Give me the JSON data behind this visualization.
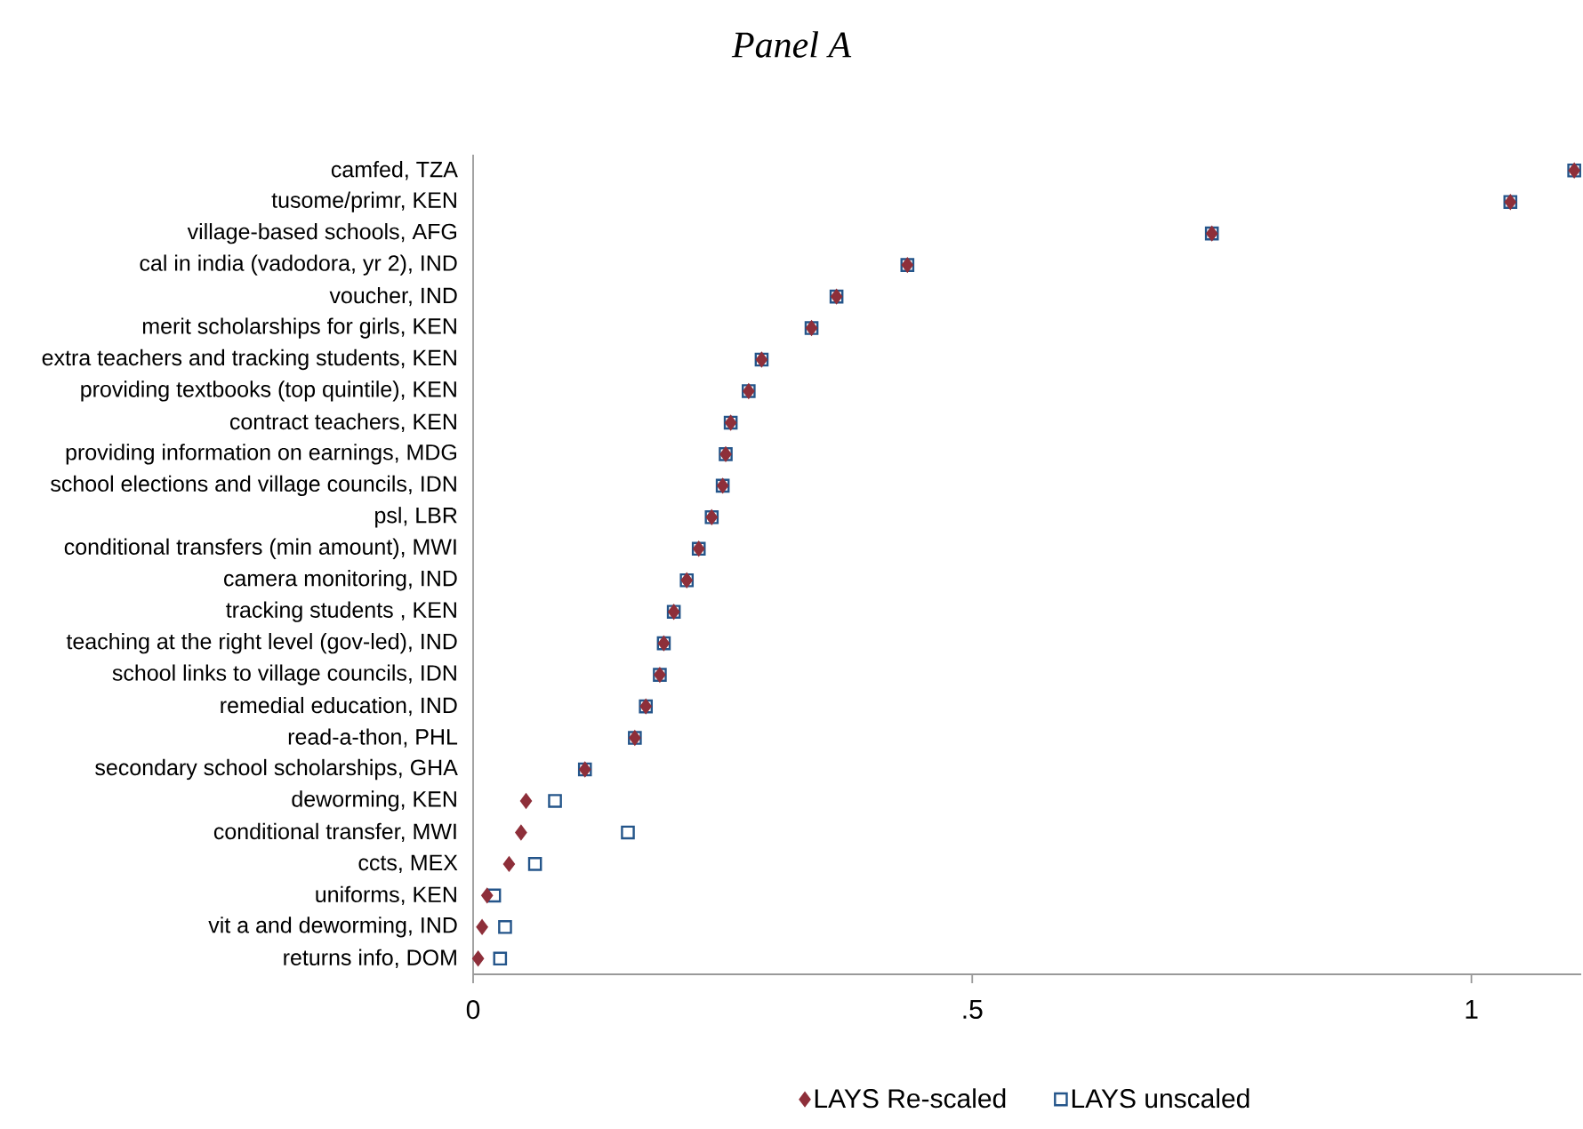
{
  "chart_data": {
    "type": "scatter",
    "title": "Panel A",
    "categories": [
      "camfed, TZA",
      "tusome/primr, KEN",
      "village-based schools, AFG",
      "cal in india (vadodora, yr 2), IND",
      "voucher, IND",
      "merit scholarships for girls, KEN",
      "extra teachers and tracking students, KEN",
      "providing textbooks (top quintile), KEN",
      "contract teachers, KEN",
      "providing information on earnings, MDG",
      "school elections and village councils, IDN",
      "psl, LBR",
      "conditional transfers (min amount), MWI",
      "camera monitoring, IND",
      "tracking students , KEN",
      "teaching at the right level (gov-led), IND",
      "school links to village councils, IDN",
      "remedial education, IND",
      "read-a-thon, PHL",
      "secondary school scholarships, GHA",
      "deworming, KEN",
      "conditional transfer, MWI",
      "ccts, MEX",
      "uniforms, KEN",
      "vit a and deworming, IND",
      "returns info, DOM"
    ],
    "orientation": "horizontal",
    "series": [
      {
        "name": "LAYS Re-scaled",
        "color": "#8e2f3a",
        "marker": "diamond",
        "values": [
          1.103,
          1.039,
          0.74,
          0.435,
          0.364,
          0.339,
          0.289,
          0.276,
          0.258,
          0.253,
          0.25,
          0.239,
          0.226,
          0.214,
          0.201,
          0.191,
          0.187,
          0.173,
          0.162,
          0.112,
          0.053,
          0.048,
          0.036,
          0.014,
          0.009,
          0.005
        ]
      },
      {
        "name": "LAYS unscaled",
        "color": "#24558a",
        "marker": "square",
        "values": [
          1.103,
          1.039,
          0.74,
          0.435,
          0.364,
          0.339,
          0.289,
          0.276,
          0.258,
          0.253,
          0.25,
          0.239,
          0.226,
          0.214,
          0.201,
          0.191,
          0.187,
          0.173,
          0.162,
          0.112,
          0.082,
          0.155,
          0.062,
          0.021,
          0.032,
          0.027
        ]
      }
    ],
    "xlim": [
      0,
      1.11
    ],
    "xticks": [
      0,
      {
        "value": 0.5,
        "label": ".5"
      },
      1
    ],
    "legend": "bottom"
  }
}
